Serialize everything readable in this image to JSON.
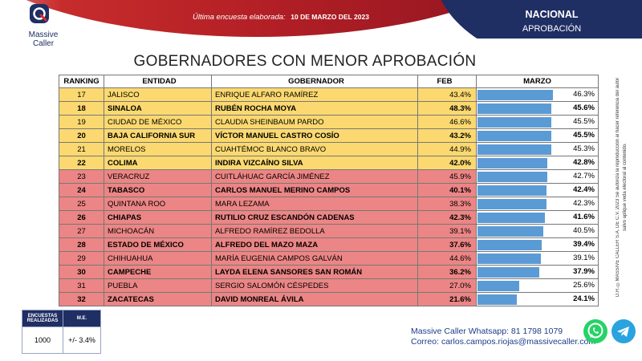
{
  "header": {
    "last_survey_label": "Última encuesta elaborada:",
    "last_survey_date": "10 DE MARZO DEL 2023",
    "scope": "NACIONAL",
    "metric": "APROBACIÓN"
  },
  "brand": {
    "line1": "Massive",
    "line2": "Caller"
  },
  "title": "GOBERNADORES CON MENOR APROBACIÓN",
  "columns": {
    "ranking": "RANKING",
    "entity": "ENTIDAD",
    "governor": "GOBERNADOR",
    "feb": "FEB",
    "march": "MARZO"
  },
  "rows": [
    {
      "rank": "17",
      "entity": "JALISCO",
      "governor": "ENRIQUE ALFARO RAMÍREZ",
      "feb": "43.4%",
      "march": "46.3%",
      "march_value": 46.3,
      "bold": false,
      "color": "yellow"
    },
    {
      "rank": "18",
      "entity": "SINALOA",
      "governor": "RUBÉN ROCHA MOYA",
      "feb": "48.3%",
      "march": "45.6%",
      "march_value": 45.6,
      "bold": true,
      "color": "yellow"
    },
    {
      "rank": "19",
      "entity": "CIUDAD DE MÉXICO",
      "governor": "CLAUDIA SHEINBAUM PARDO",
      "feb": "46.6%",
      "march": "45.5%",
      "march_value": 45.5,
      "bold": false,
      "color": "yellow"
    },
    {
      "rank": "20",
      "entity": "BAJA CALIFORNIA SUR",
      "governor": "VÍCTOR MANUEL CASTRO COSÍO",
      "feb": "43.2%",
      "march": "45.5%",
      "march_value": 45.5,
      "bold": true,
      "color": "yellow"
    },
    {
      "rank": "21",
      "entity": "MORELOS",
      "governor": "CUAHTÉMOC BLANCO BRAVO",
      "feb": "44.9%",
      "march": "45.3%",
      "march_value": 45.3,
      "bold": false,
      "color": "yellow"
    },
    {
      "rank": "22",
      "entity": "COLIMA",
      "governor": "INDIRA VIZCAÍNO SILVA",
      "feb": "42.0%",
      "march": "42.8%",
      "march_value": 42.8,
      "bold": true,
      "color": "yellow"
    },
    {
      "rank": "23",
      "entity": "VERACRUZ",
      "governor": "CUITLÁHUAC GARCÍA JIMÉNEZ",
      "feb": "45.9%",
      "march": "42.7%",
      "march_value": 42.7,
      "bold": false,
      "color": "red"
    },
    {
      "rank": "24",
      "entity": "TABASCO",
      "governor": "CARLOS MANUEL MERINO CAMPOS",
      "feb": "40.1%",
      "march": "42.4%",
      "march_value": 42.4,
      "bold": true,
      "color": "red"
    },
    {
      "rank": "25",
      "entity": "QUINTANA ROO",
      "governor": "MARA LEZAMA",
      "feb": "38.3%",
      "march": "42.3%",
      "march_value": 42.3,
      "bold": false,
      "color": "red"
    },
    {
      "rank": "26",
      "entity": "CHIAPAS",
      "governor": "RUTILIO CRUZ ESCANDÓN CADENAS",
      "feb": "42.3%",
      "march": "41.6%",
      "march_value": 41.6,
      "bold": true,
      "color": "red"
    },
    {
      "rank": "27",
      "entity": "MICHOACÁN",
      "governor": "ALFREDO RAMÍREZ BEDOLLA",
      "feb": "39.1%",
      "march": "40.5%",
      "march_value": 40.5,
      "bold": false,
      "color": "red"
    },
    {
      "rank": "28",
      "entity": "ESTADO DE MÉXICO",
      "governor": "ALFREDO DEL MAZO MAZA",
      "feb": "37.6%",
      "march": "39.4%",
      "march_value": 39.4,
      "bold": true,
      "color": "red"
    },
    {
      "rank": "29",
      "entity": "CHIHUAHUA",
      "governor": "MARÍA EUGENIA CAMPOS GALVÁN",
      "feb": "44.6%",
      "march": "39.1%",
      "march_value": 39.1,
      "bold": false,
      "color": "red"
    },
    {
      "rank": "30",
      "entity": "CAMPECHE",
      "governor": "LAYDA ELENA SANSORES SAN ROMÁN",
      "feb": "36.2%",
      "march": "37.9%",
      "march_value": 37.9,
      "bold": true,
      "color": "red"
    },
    {
      "rank": "31",
      "entity": "PUEBLA",
      "governor": "SERGIO SALOMÓN CÉSPEDES",
      "feb": "27.0%",
      "march": "25.6%",
      "march_value": 25.6,
      "bold": false,
      "color": "red"
    },
    {
      "rank": "32",
      "entity": "ZACATECAS",
      "governor": "DAVID MONREAL ÁVILA",
      "feb": "21.6%",
      "march": "24.1%",
      "march_value": 24.1,
      "bold": true,
      "color": "red"
    }
  ],
  "bar_scale_max": 72,
  "side_note": "D.R. ©MASSIVE CALLER S.A. DE C.V. 2023 Se autoriza la reproducción al hacer referencia del autor salvo aplique veda electoral al contenido.",
  "stats": {
    "surveys_label": "ENCUESTAS REALIZADAS",
    "surveys_value": "1000",
    "me_label": "M.E.",
    "me_value": "+/- 3.4%"
  },
  "contact": {
    "whatsapp_label": "Massive Caller Whatsapp:",
    "whatsapp_number": "81 1798 1079",
    "email_label": "Correo:",
    "email": "carlos.campos.riojas@massivecaller.com"
  },
  "colors": {
    "yellow": "#fbd970",
    "red": "#ec8585",
    "bar": "#5b9bd5",
    "navy": "#1f2e63"
  }
}
